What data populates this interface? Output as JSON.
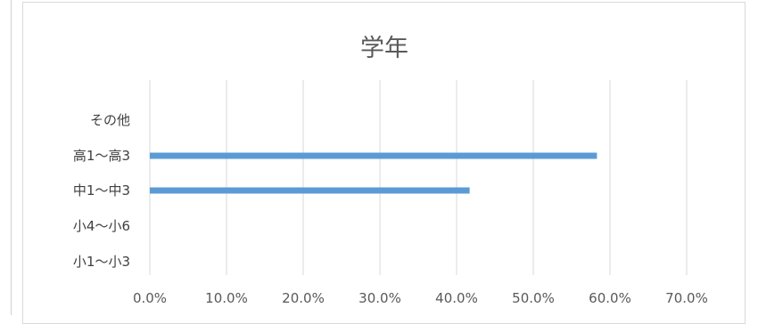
{
  "chart_data": {
    "type": "bar",
    "orientation": "horizontal",
    "title": "学年",
    "categories": [
      "小1～小3",
      "小4～小6",
      "中1～中3",
      "高1～高3",
      "その他"
    ],
    "values": [
      0.0,
      0.0,
      41.7,
      58.3,
      0.0
    ],
    "value_unit": "%",
    "xlim": [
      0,
      70
    ],
    "xticks": [
      "0.0%",
      "10.0%",
      "20.0%",
      "30.0%",
      "40.0%",
      "50.0%",
      "60.0%",
      "70.0%"
    ],
    "grid": true,
    "legend": "none",
    "bar_color": "#5B9BD5",
    "grid_color": "#d9d9d9"
  }
}
